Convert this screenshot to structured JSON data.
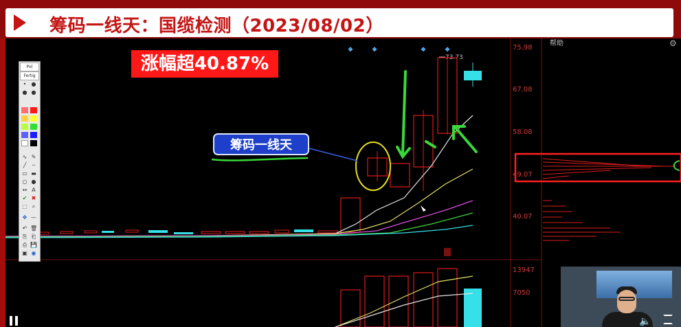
{
  "title": "筹码一线天：国缆检测（2023/08/02）",
  "gain_label": "涨幅超40.87%",
  "chip_label": "筹码一线天",
  "help_label": "帮助",
  "price_axis": [
    "75.98",
    "67.08",
    "58.08",
    "49.07",
    "40.07"
  ],
  "volume_axis": [
    "13947",
    "7050"
  ],
  "high_price_label": "73.73",
  "toolbox": {
    "tabs": [
      "Pol",
      "Fertig"
    ],
    "tools": [
      "pen",
      "line",
      "rect",
      "ellipse",
      "arrow",
      "text",
      "check",
      "cross",
      "select",
      "zoom",
      "move",
      "undo",
      "delete",
      "copy",
      "print",
      "save",
      "clear"
    ]
  },
  "colors": {
    "up_candle": "#e01c1c",
    "down_candle": "#36e0e8",
    "ma5": "#e6e6e6",
    "ma10": "#e6e066",
    "ma20": "#e04ee0",
    "ma60": "#44d444",
    "ma120": "#36e0e8",
    "annotation_arrow": "#3ad83a",
    "circle": "#e8e020",
    "highlight_box": "#ff2020"
  },
  "icons": [
    "play-icon",
    "gear-icon",
    "pause-icon",
    "volume-icon",
    "fullscreen-icon"
  ]
}
